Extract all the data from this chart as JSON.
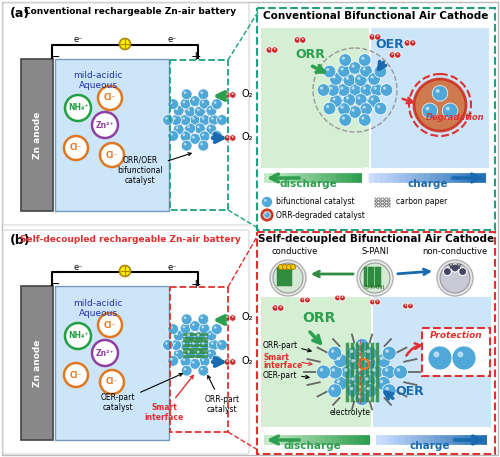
{
  "bg_color": "#ffffff",
  "panel_a_title": "Conventional rechargeable Zn-air battery",
  "panel_b_title": "Self-decoupled rechargeable Zn-air battery",
  "panel_ar_title": "Conventional Bifunctional Air Cathode",
  "panel_br_title": "Self-decoupled Bifunctional Air Cathode",
  "blue_catalyst": "#4fa8d8",
  "blue_catalyst_dark": "#2a7ab8",
  "blue_light": "#b8d9f0",
  "green_discharge": "#2e9e4f",
  "blue_charge": "#1a6ab0",
  "red_color": "#e03030",
  "orange_ion": "#e07820",
  "purple_ion": "#9040a0",
  "green_ion": "#20a040",
  "gray_anode": "#888888",
  "dark_gray": "#555555",
  "green_arrow": "#2e9e4f",
  "blue_arrow": "#1a6ab0",
  "red_arrow": "#e03030",
  "light_green_bg": "#d5efd5",
  "light_blue_bg": "#cce5f8",
  "dashed_teal": "#20a080",
  "dashed_red": "#e03030",
  "orange_red": "#cc4422",
  "brown_degraded": "#b85030"
}
